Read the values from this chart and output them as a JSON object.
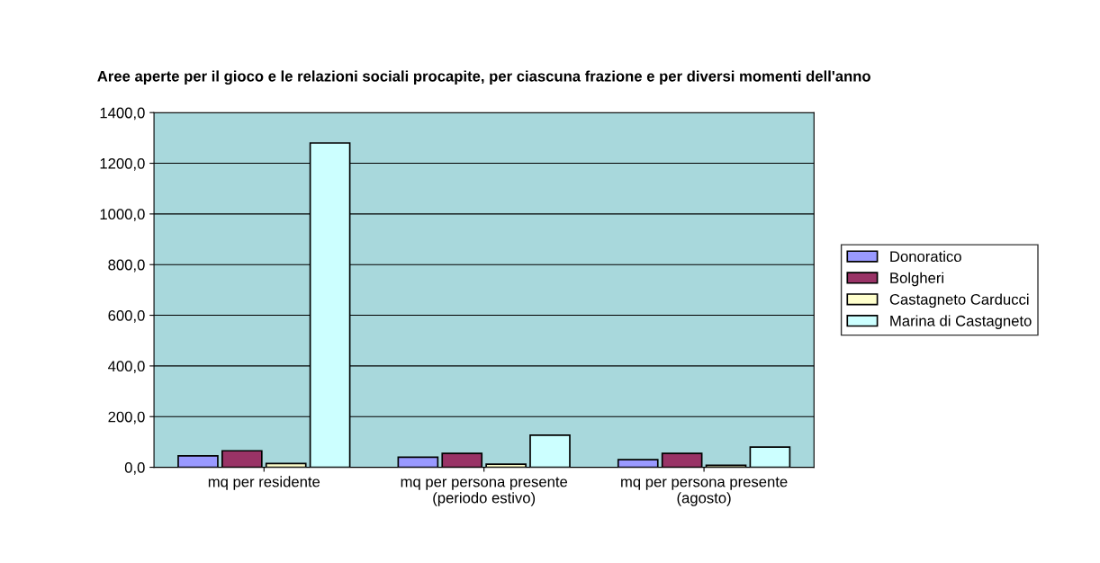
{
  "chart_data": {
    "type": "bar",
    "title": "Aree aperte per il gioco e le relazioni sociali procapite, per ciascuna frazione e per diversi momenti dell'anno",
    "categories": [
      "mq per residente",
      "mq per persona presente\n(periodo estivo)",
      "mq per persona presente\n(agosto)"
    ],
    "series": [
      {
        "name": "Donoratico",
        "color": "#9999ff",
        "values": [
          45,
          40,
          30
        ]
      },
      {
        "name": "Bolgheri",
        "color": "#993366",
        "values": [
          65,
          55,
          55
        ]
      },
      {
        "name": "Castagneto Carducci",
        "color": "#ffffcc",
        "values": [
          15,
          12,
          8
        ]
      },
      {
        "name": "Marina di Castagneto",
        "color": "#ccffff",
        "values": [
          1280,
          127,
          80
        ]
      }
    ],
    "ylim": [
      0,
      1400
    ],
    "yticks": [
      {
        "value": 0,
        "label": "0,0"
      },
      {
        "value": 200,
        "label": "200,0"
      },
      {
        "value": 400,
        "label": "400,0"
      },
      {
        "value": 600,
        "label": "600,0"
      },
      {
        "value": 800,
        "label": "800,0"
      },
      {
        "value": 1000,
        "label": "1000,0"
      },
      {
        "value": 1200,
        "label": "1200,0"
      },
      {
        "value": 1400,
        "label": "1400,0"
      }
    ],
    "grid": "y",
    "legend": "right"
  }
}
